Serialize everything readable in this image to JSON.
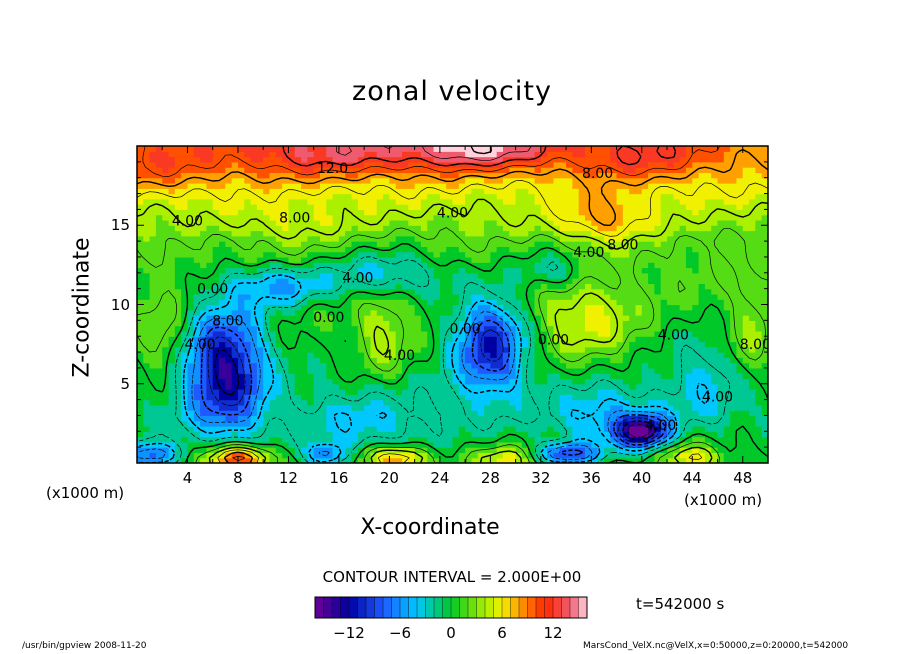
{
  "chart_data": {
    "type": "heatmap",
    "title": "zonal velocity",
    "xlabel": "X-coordinate",
    "ylabel": "Z-coordinate",
    "x_unit_left": "(x1000 m)",
    "x_unit_right": "(x1000 m)",
    "xlim": [
      0,
      50
    ],
    "ylim": [
      0,
      20
    ],
    "x_ticks": [
      "4",
      "8",
      "12",
      "16",
      "20",
      "24",
      "28",
      "32",
      "36",
      "40",
      "44",
      "48"
    ],
    "y_ticks": [
      "5",
      "10",
      "15"
    ],
    "contour_labels": [
      {
        "text": "12.0",
        "x": 15.5,
        "y": 18.6
      },
      {
        "text": "8.00",
        "x": 36.5,
        "y": 18.3
      },
      {
        "text": "4.00",
        "x": 4.0,
        "y": 15.3
      },
      {
        "text": "8.00",
        "x": 12.5,
        "y": 15.5
      },
      {
        "text": "4.00",
        "x": 25.0,
        "y": 15.8
      },
      {
        "text": "4.00",
        "x": 35.8,
        "y": 13.3
      },
      {
        "text": "8.00",
        "x": 38.5,
        "y": 13.8
      },
      {
        "text": "4.00",
        "x": 17.5,
        "y": 11.7
      },
      {
        "text": "0.00",
        "x": 6.0,
        "y": 11.0
      },
      {
        "text": "4.00",
        "x": 5.0,
        "y": 7.5
      },
      {
        "text": "8.00",
        "x": 7.2,
        "y": 9.0
      },
      {
        "text": "0.00",
        "x": 15.2,
        "y": 9.2
      },
      {
        "text": "4.00",
        "x": 20.8,
        "y": 6.8
      },
      {
        "text": "0.00",
        "x": 26.0,
        "y": 8.5
      },
      {
        "text": "0.00",
        "x": 33.0,
        "y": 7.8
      },
      {
        "text": "4.00",
        "x": 42.5,
        "y": 8.1
      },
      {
        "text": "8.00",
        "x": 49.0,
        "y": 7.5
      },
      {
        "text": "4.00",
        "x": 46.0,
        "y": 4.2
      },
      {
        "text": "4.00",
        "x": 41.5,
        "y": 2.4
      }
    ],
    "contour_interval": "CONTOUR INTERVAL = 2.000E+00",
    "colorbar": {
      "range": [
        -16,
        16
      ],
      "tick_labels": [
        "−12",
        "−6",
        "0",
        "6",
        "12"
      ],
      "tick_values": [
        -12,
        -6,
        0,
        6,
        12
      ]
    },
    "time_label": "t=542000 s"
  },
  "footer": {
    "left": "/usr/bin/gpview  2008-11-20",
    "right": "MarsCond_VelX.nc@VelX,x=0:50000,z=0:20000,t=542000"
  }
}
